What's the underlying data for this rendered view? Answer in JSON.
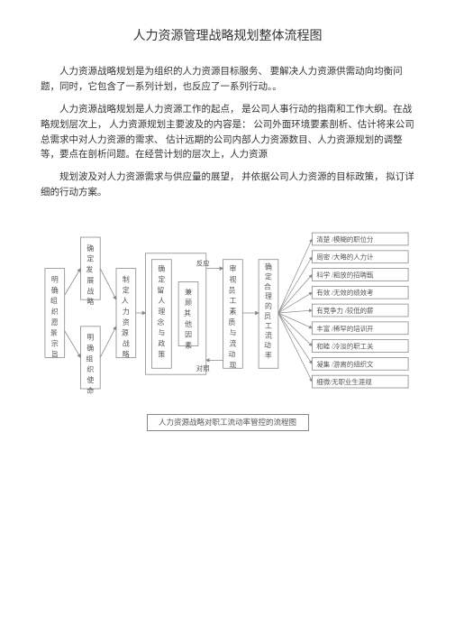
{
  "title": "人力资源管理战略规划整体流程图",
  "paragraphs": [
    "人力资源战略规划是为组织的人力资源目标服务、  要解决人力资源供需动向均衡问题，同时，它包含了一系列计划，也反应了一系列行动。。",
    "人力资源战略规划是人力资源工作的起点，  是公司人事行动的指南和工作大纲。在战略规划层次上，  人力资源规划主要波及的内容是：  公司外面环境要素剖析、估计将来公司总需求中对人力资源的需求、  估计远期的公司内部人力资源数目、人力资源规划的调整等，要点在剖析问题。在经营计划的层次上，人力资源",
    "规划波及对人力资源需求与供应量的展望，  并依据公司人力资源的目标政策，  拟订详细的行动方案。"
  ],
  "boxes": {
    "b1": "明确组织愿景宗旨",
    "b2a": "确定发展战略",
    "b2b": "明确组织使命",
    "b3": "制定人力资源战略",
    "b4": "确定留人理念与政策",
    "b5": "兼顾其他因素",
    "b6": "审视员工素质与流动现象",
    "b7": "确定合理的员工流动率"
  },
  "items": [
    "清楚 /模糊的职位分",
    "周密 /大略的人力计",
    "科学 /粗放的招聘甄",
    "有效 /无效的绩效考",
    "有竞争力 /较低的薪",
    "丰富 /稀罕的培训开",
    "和睦 /冷淡的职工关",
    "凝集 /游离的组织文",
    "细微/无职业生涯规"
  ],
  "labels": {
    "reflect": "反应",
    "contrast": "对照"
  },
  "caption": "人力资源战略对职工流动率管控的流程图"
}
